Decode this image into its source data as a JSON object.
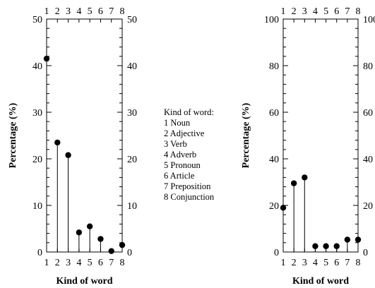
{
  "legend": {
    "title": "Kind of word:",
    "items": [
      "1 Noun",
      "2 Adjective",
      "3 Verb",
      "4 Adverb",
      "5 Pronoun",
      "6 Article",
      "7 Preposition",
      "8 Conjunction"
    ]
  },
  "chart_data": [
    {
      "type": "scatter",
      "style": "stem",
      "xlabel": "Kind of word",
      "ylabel": "Percentage (%)",
      "x": [
        1,
        2,
        3,
        4,
        5,
        6,
        7,
        8
      ],
      "values": [
        41.5,
        23.5,
        20.8,
        4.2,
        5.5,
        2.8,
        0.2,
        1.5
      ],
      "xlim": [
        1,
        8
      ],
      "ylim": [
        0,
        50
      ],
      "yticks": [
        0,
        10,
        20,
        30,
        40,
        50
      ],
      "xticks": [
        1,
        2,
        3,
        4,
        5,
        6,
        7,
        8
      ],
      "mirror_axes": true
    },
    {
      "type": "scatter",
      "style": "stem",
      "xlabel": "Kind of word",
      "ylabel": "Percentage (%)",
      "x": [
        1,
        2,
        3,
        4,
        5,
        6,
        7,
        8
      ],
      "values": [
        19,
        29.5,
        32,
        2.5,
        2.5,
        2.5,
        5.3,
        5.3
      ],
      "xlim": [
        1,
        8
      ],
      "ylim": [
        0,
        100
      ],
      "yticks": [
        0,
        20,
        40,
        60,
        80,
        100
      ],
      "xticks": [
        1,
        2,
        3,
        4,
        5,
        6,
        7,
        8
      ],
      "mirror_axes": true
    }
  ]
}
